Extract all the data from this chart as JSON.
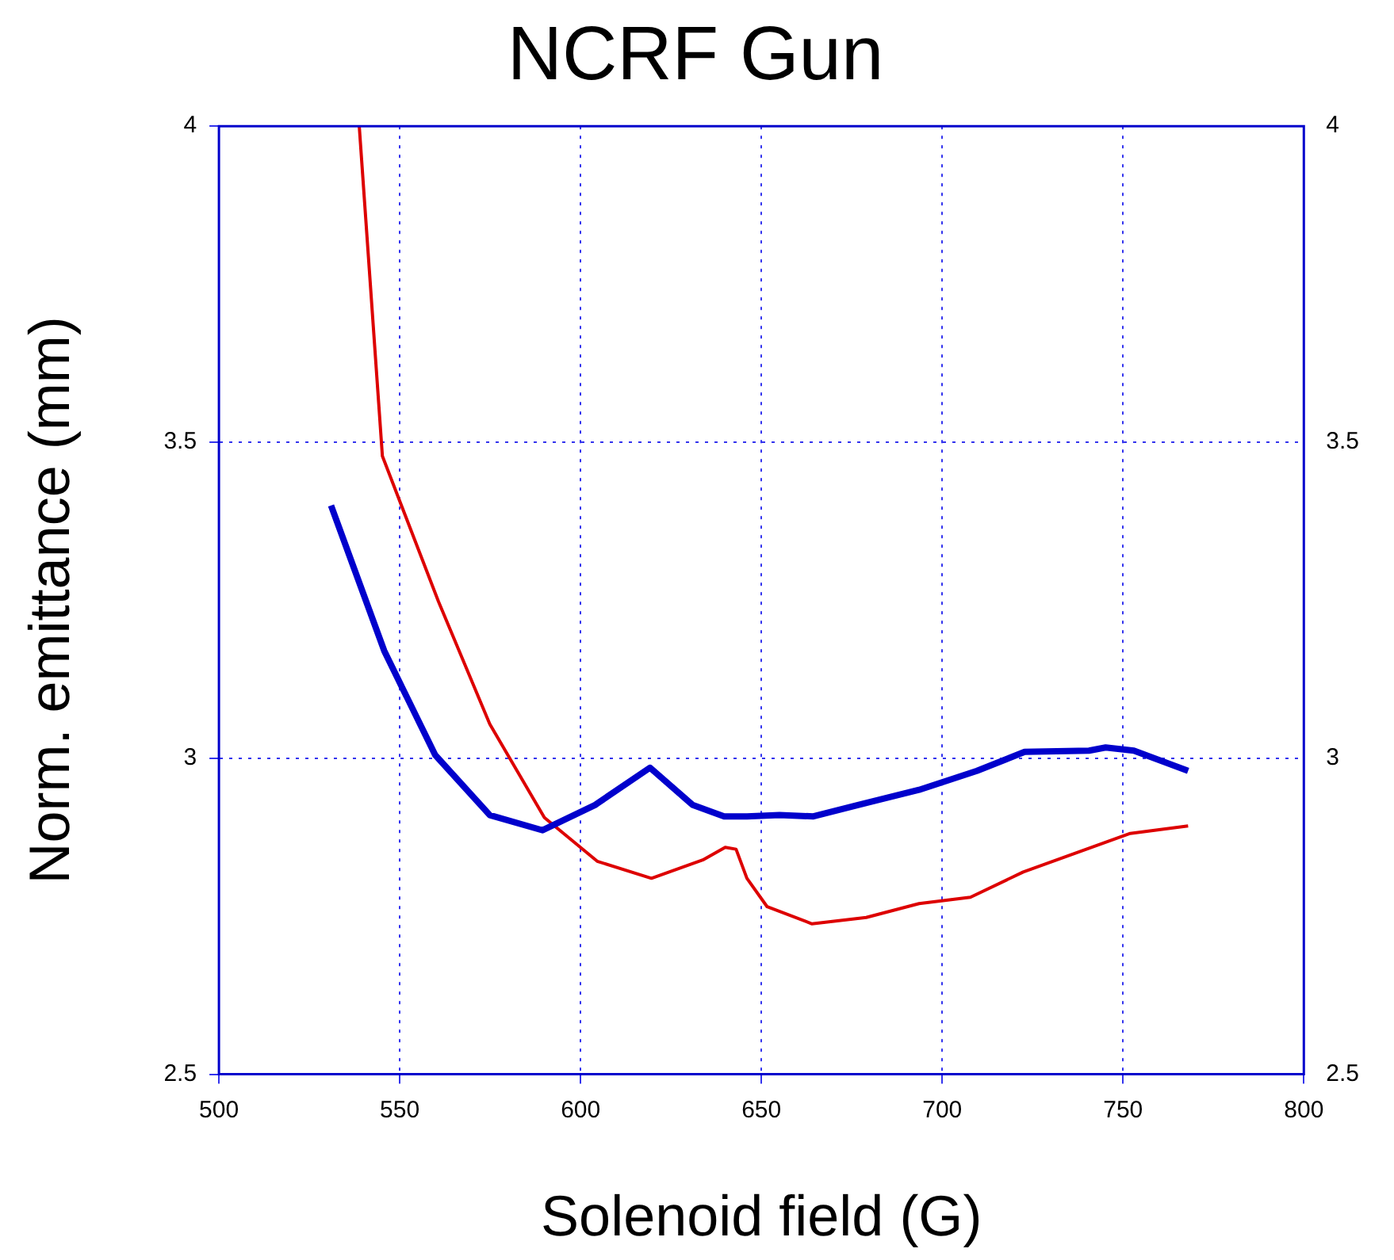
{
  "chart_data": {
    "type": "line",
    "title": "NCRF Gun",
    "xlabel": "Solenoid field (G)",
    "ylabel": "Norm. emittance (mm)",
    "xlim": [
      500,
      800
    ],
    "xticks": [
      500,
      550,
      600,
      650,
      700,
      750,
      800
    ],
    "ylim": [
      2.5,
      4
    ],
    "yticks": [
      2.5,
      3,
      3.5,
      4
    ],
    "y2lim": [
      2.5,
      4
    ],
    "y2ticks": [
      2.5,
      3,
      3.5,
      4
    ],
    "grid": true,
    "legend": false,
    "marker": "none",
    "line_style": "solid",
    "series": [
      {
        "color": "#0000cc",
        "x": [
          531,
          545.7,
          559.8,
          574.9,
          589.5,
          604,
          619.2,
          631,
          639.7,
          646,
          655,
          664.4,
          676.7,
          693.6,
          709.6,
          722.8,
          740.6,
          745.2,
          753,
          768
        ],
        "values": [
          3.4,
          3.17,
          3.005,
          2.91,
          2.886,
          2.926,
          2.985,
          2.926,
          2.908,
          2.908,
          2.91,
          2.908,
          2.926,
          2.95,
          2.98,
          3.01,
          3.012,
          3.017,
          3.012,
          2.98
        ]
      },
      {
        "color": "#dd0000",
        "x": [
          538.8,
          545.2,
          560.7,
          574.9,
          590,
          604.6,
          619.6,
          633.8,
          640,
          643,
          646,
          651.6,
          664,
          679,
          693.6,
          707.8,
          722.4,
          752,
          768
        ],
        "values": [
          4.0,
          3.478,
          3.248,
          3.054,
          2.906,
          2.837,
          2.81,
          2.839,
          2.859,
          2.856,
          2.81,
          2.765,
          2.738,
          2.748,
          2.77,
          2.78,
          2.82,
          2.881,
          2.893
        ]
      }
    ]
  }
}
